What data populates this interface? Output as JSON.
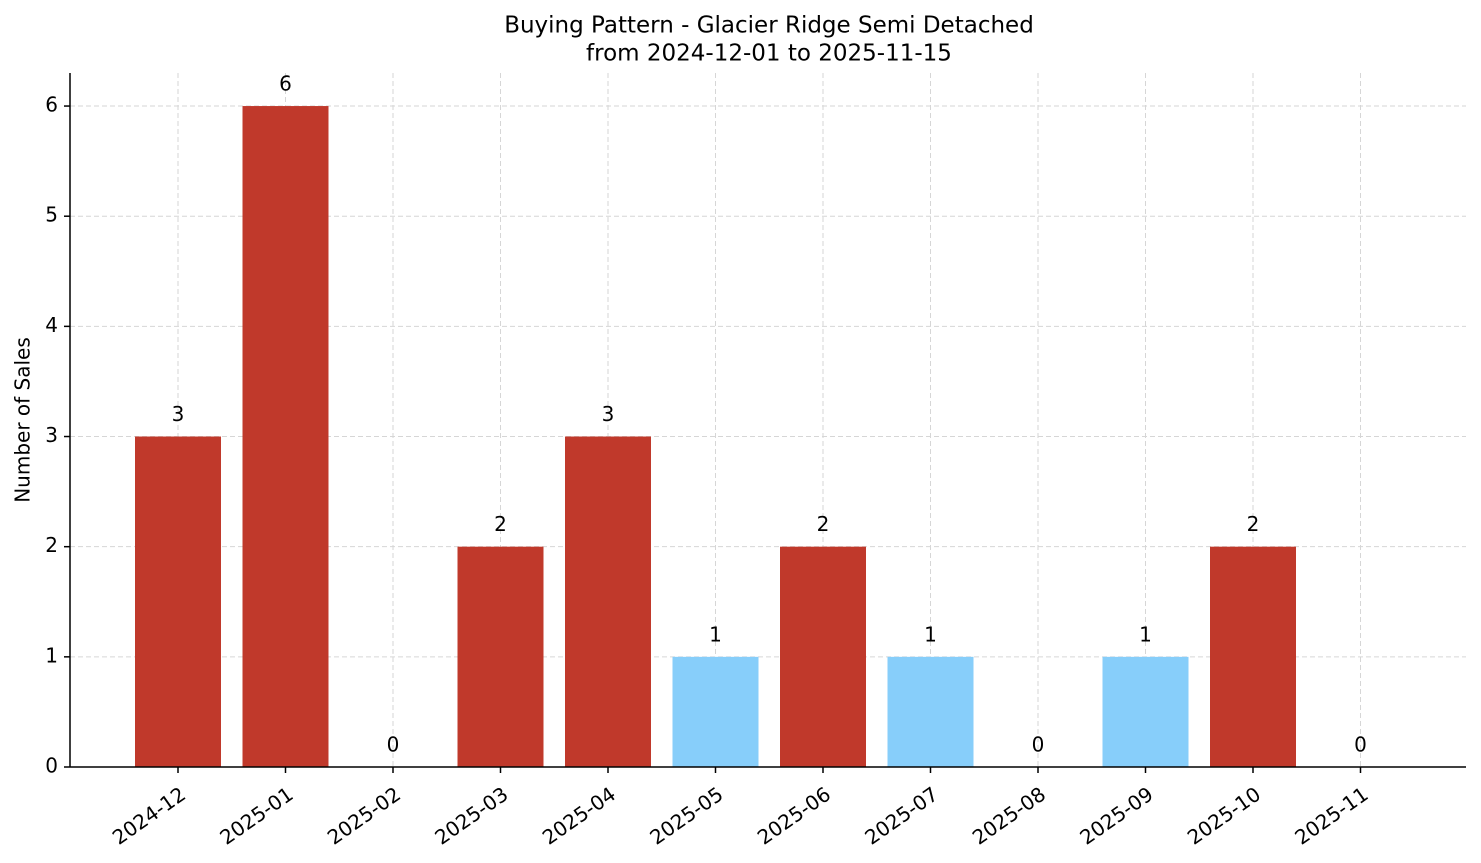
{
  "chart_data": {
    "type": "bar",
    "title": "Buying Pattern - Glacier Ridge Semi Detached",
    "subtitle": "from 2024-12-01 to 2025-11-15",
    "y_label": "Number of Sales",
    "categories": [
      "2024-12",
      "2025-01",
      "2025-02",
      "2025-03",
      "2025-04",
      "2025-05",
      "2025-06",
      "2025-07",
      "2025-08",
      "2025-09",
      "2025-10",
      "2025-11"
    ],
    "values": [
      3,
      6,
      0,
      2,
      3,
      1,
      2,
      1,
      0,
      1,
      2,
      0
    ],
    "colors": [
      "#c0392b",
      "#c0392b",
      "#c0392b",
      "#c0392b",
      "#c0392b",
      "#87cefa",
      "#c0392b",
      "#87cefa",
      "#c0392b",
      "#87cefa",
      "#c0392b",
      "#c0392b"
    ],
    "ylim": [
      0,
      6.3
    ],
    "yticks": [
      0,
      1,
      2,
      3,
      4,
      5,
      6
    ],
    "grid": true
  }
}
